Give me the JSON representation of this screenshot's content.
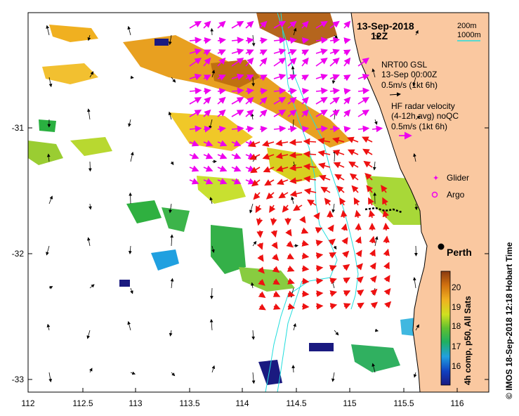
{
  "date": "13-Sep-2018",
  "time": "12Z",
  "contour_legend": {
    "c1": "200m",
    "c2": "1000m"
  },
  "model_legend": {
    "line1": "NRT00 GSL",
    "line2": "13-Sep 00:00Z",
    "line3": "0.5m/s (1kt 6h)"
  },
  "radar_legend": {
    "line1": "HF radar velocity",
    "line2": "(4-12h avg) noQC",
    "line3": "0.5m/s (1kt 6h)"
  },
  "markers": {
    "glider": "Glider",
    "argo": "Argo",
    "city": "Perth"
  },
  "x_ticks": [
    "112",
    "112.5",
    "113",
    "113.5",
    "114",
    "114.5",
    "115",
    "115.5",
    "116"
  ],
  "y_ticks": [
    "-31",
    "-32",
    "-33"
  ],
  "colorbar": {
    "ticks": [
      "20",
      "19",
      "18",
      "17",
      "16"
    ],
    "label": "4h comp, p50, All Sats"
  },
  "credit": "© IMOS 18-Sep-2018 12:18 Hobart Time",
  "colors": {
    "land": "#FAC8A0",
    "model_arrow": "#000000",
    "radar_arrow": "#EE00EE",
    "radar_red": "#EE1111",
    "contour": "#22DDDD"
  }
}
